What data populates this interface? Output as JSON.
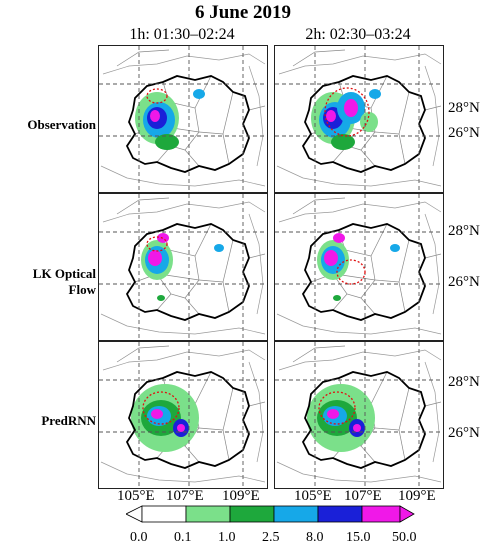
{
  "title": "6 June 2019",
  "columns": [
    "1h: 01:30–02:24",
    "2h: 02:30–03:24"
  ],
  "rows": [
    "Observation",
    "LK Optical Flow",
    "PredRNN"
  ],
  "lat_labels": [
    "28°N",
    "26°N"
  ],
  "lon_labels": [
    "105°E",
    "107°E",
    "109°E"
  ],
  "colorbar": {
    "ticks": [
      "0.0",
      "0.1",
      "1.0",
      "2.5",
      "8.0",
      "15.0",
      "50.0"
    ],
    "colors": [
      "#ffffff",
      "#7be08a",
      "#1ea83c",
      "#16a8e8",
      "#1a20d8",
      "#f018e8"
    ]
  }
}
